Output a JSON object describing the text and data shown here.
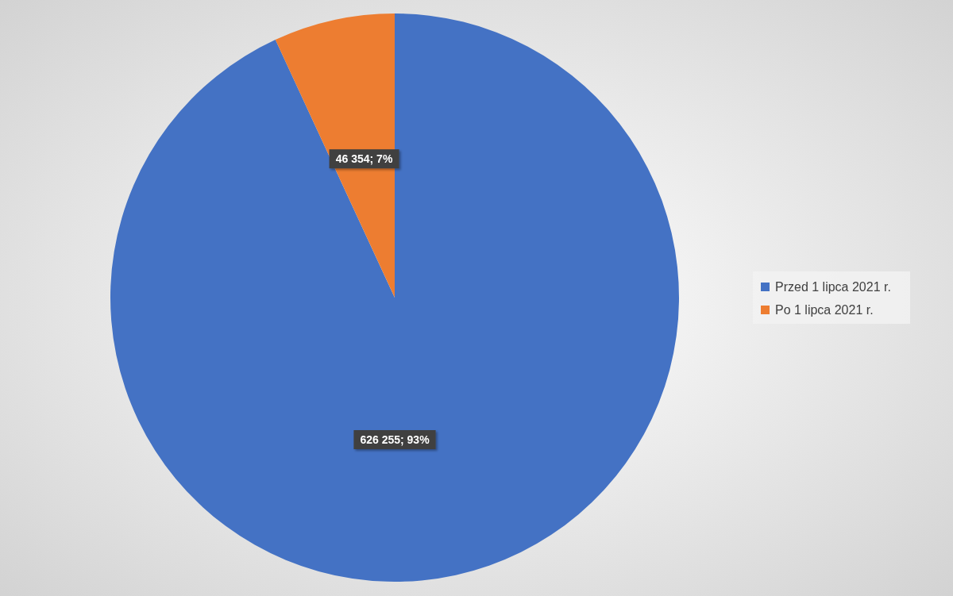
{
  "chart_data": {
    "type": "pie",
    "categories": [
      "Przed 1 lipca 2021 r.",
      "Po 1 lipca 2021 r."
    ],
    "values": [
      626255,
      46354
    ],
    "colors": [
      "#4472c4",
      "#ed7d31"
    ],
    "value_labels": [
      "626 255; 93%",
      "46 354; 7%"
    ],
    "legend": "right"
  }
}
